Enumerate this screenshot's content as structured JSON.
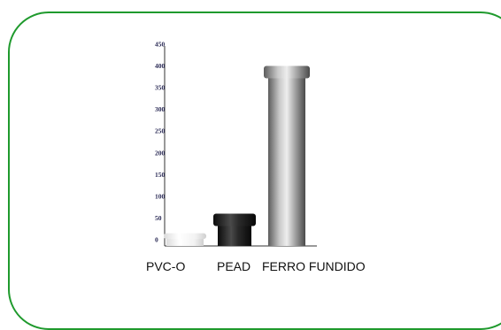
{
  "chart_data": {
    "type": "bar",
    "title": "",
    "xlabel": "",
    "ylabel": "",
    "categories": [
      "PVC-O",
      "PEAD",
      "FERRO FUNDIDO"
    ],
    "values": [
      15,
      60,
      400
    ],
    "series_colors": [
      "#eeeeee",
      "#1e1e1e",
      "#8a8a8a"
    ],
    "ylim": [
      0,
      450
    ],
    "yticks": [
      "0",
      "50",
      "100",
      "150",
      "200",
      "250",
      "300",
      "350",
      "400",
      "450"
    ],
    "grid": false,
    "legend": "none"
  },
  "frame_color": "#1f9a2d"
}
